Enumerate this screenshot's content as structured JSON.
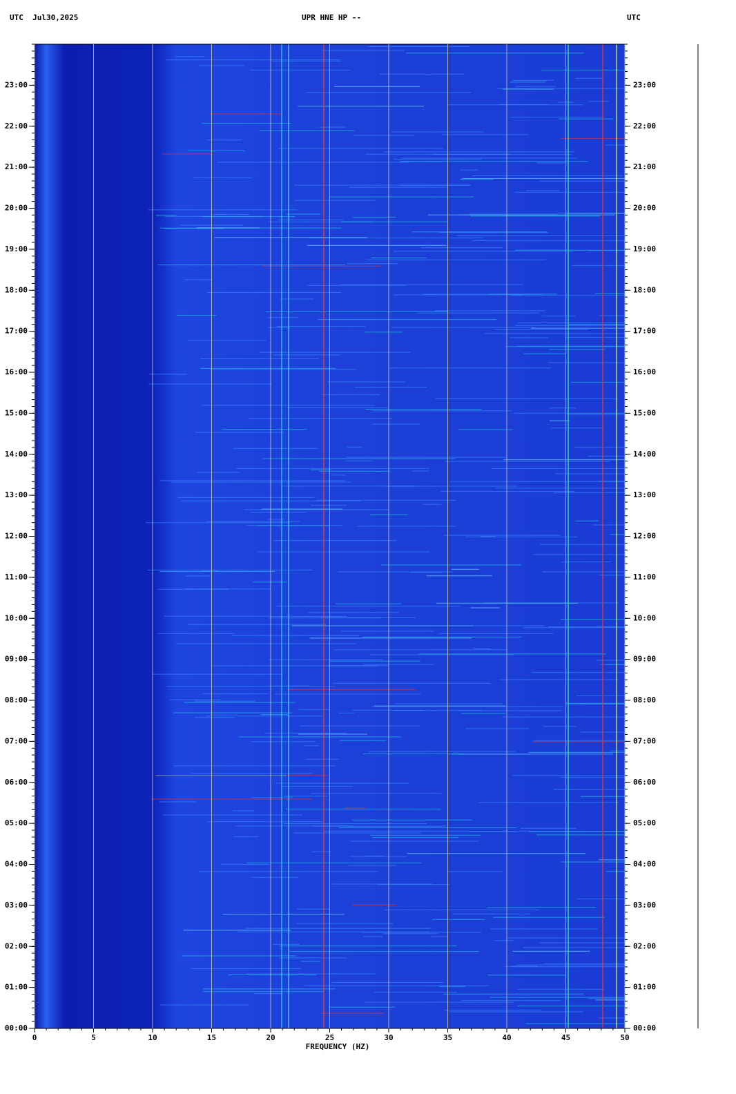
{
  "chart_data": {
    "type": "spectrogram",
    "title": "UPR HNE HP --",
    "left_header": "UTC  Jul30,2025",
    "right_header": "UTC",
    "xlabel": "FREQUENCY (HZ)",
    "xlim": [
      0,
      50
    ],
    "xticks": [
      0,
      5,
      10,
      15,
      20,
      25,
      30,
      35,
      40,
      45,
      50
    ],
    "ylim": [
      0,
      24
    ],
    "yticks": [
      {
        "value": 0,
        "label": "00:00"
      },
      {
        "value": 1,
        "label": "01:00"
      },
      {
        "value": 2,
        "label": "02:00"
      },
      {
        "value": 3,
        "label": "03:00"
      },
      {
        "value": 4,
        "label": "04:00"
      },
      {
        "value": 5,
        "label": "05:00"
      },
      {
        "value": 6,
        "label": "06:00"
      },
      {
        "value": 7,
        "label": "07:00"
      },
      {
        "value": 8,
        "label": "08:00"
      },
      {
        "value": 9,
        "label": "09:00"
      },
      {
        "value": 10,
        "label": "10:00"
      },
      {
        "value": 11,
        "label": "11:00"
      },
      {
        "value": 12,
        "label": "12:00"
      },
      {
        "value": 13,
        "label": "13:00"
      },
      {
        "value": 14,
        "label": "14:00"
      },
      {
        "value": 15,
        "label": "15:00"
      },
      {
        "value": 16,
        "label": "16:00"
      },
      {
        "value": 17,
        "label": "17:00"
      },
      {
        "value": 18,
        "label": "18:00"
      },
      {
        "value": 19,
        "label": "19:00"
      },
      {
        "value": 20,
        "label": "20:00"
      },
      {
        "value": 21,
        "label": "21:00"
      },
      {
        "value": 22,
        "label": "22:00"
      },
      {
        "value": 23,
        "label": "23:00"
      }
    ],
    "grid": true
  }
}
